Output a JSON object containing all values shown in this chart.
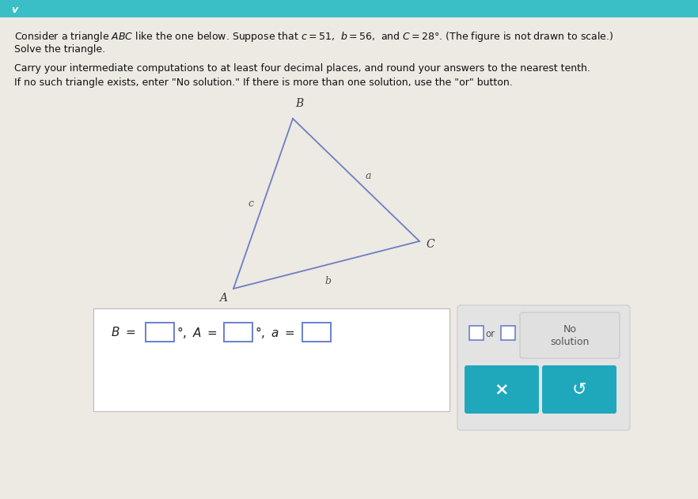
{
  "bg_color": "#ede9e3",
  "top_bar_color": "#3bbfc7",
  "title_line1": "Consider a triangle $ABC$ like the one below. Suppose that $c = 51$,  $b = 56$,  and $C = 28°$. (The figure is not drawn to scale.)",
  "title_line2": "Solve the triangle.",
  "instruction1": "Carry your intermediate computations to at least four decimal places, and round your answers to the nearest tenth.",
  "instruction2": "If no such triangle exists, enter \"No solution.\" If there is more than one solution, use the \"or\" button.",
  "tri_A": [
    0.3,
    0.375
  ],
  "tri_B": [
    0.38,
    0.155
  ],
  "tri_C": [
    0.62,
    0.355
  ],
  "triangle_color": "#6b7fc4",
  "answer_box_bg": "#ffffff",
  "answer_box_border": "#bbbbbb",
  "input_box_border": "#6a7fcf",
  "panel_bg": "#e3e3e3",
  "panel_border": "#cccccc",
  "button_teal": "#1fa8bc",
  "button_x": "×",
  "button_redo": "↺",
  "chevron": "v"
}
